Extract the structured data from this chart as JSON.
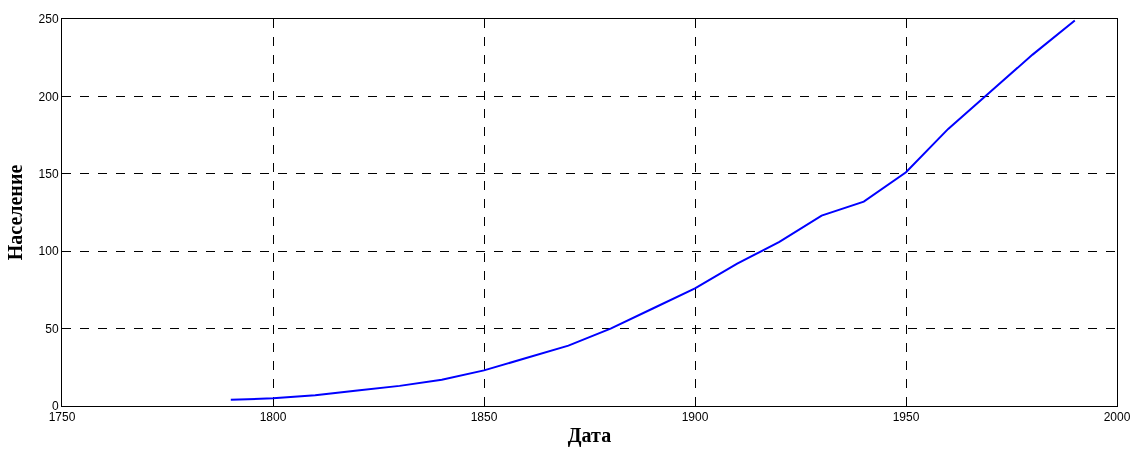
{
  "chart_data": {
    "type": "line",
    "xlabel": "Дата",
    "ylabel": "Население",
    "x": [
      1790,
      1800,
      1810,
      1820,
      1830,
      1840,
      1850,
      1860,
      1870,
      1880,
      1890,
      1900,
      1910,
      1920,
      1930,
      1940,
      1950,
      1960,
      1970,
      1980,
      1990
    ],
    "series": [
      {
        "color": "#0000ff",
        "values": [
          4,
          5,
          7,
          10,
          13,
          17,
          23,
          31,
          39,
          50,
          63,
          76,
          92,
          106,
          123,
          132,
          151,
          179,
          203,
          227,
          249
        ]
      }
    ],
    "xlim": [
      1750,
      2000
    ],
    "xticks": [
      1750,
      1800,
      1850,
      1900,
      1950,
      2000
    ],
    "ylim": [
      0,
      250
    ],
    "yticks": [
      0,
      50,
      100,
      150,
      200,
      250
    ],
    "grid": true,
    "legend": false,
    "marker": "none",
    "line_style": "solid"
  }
}
